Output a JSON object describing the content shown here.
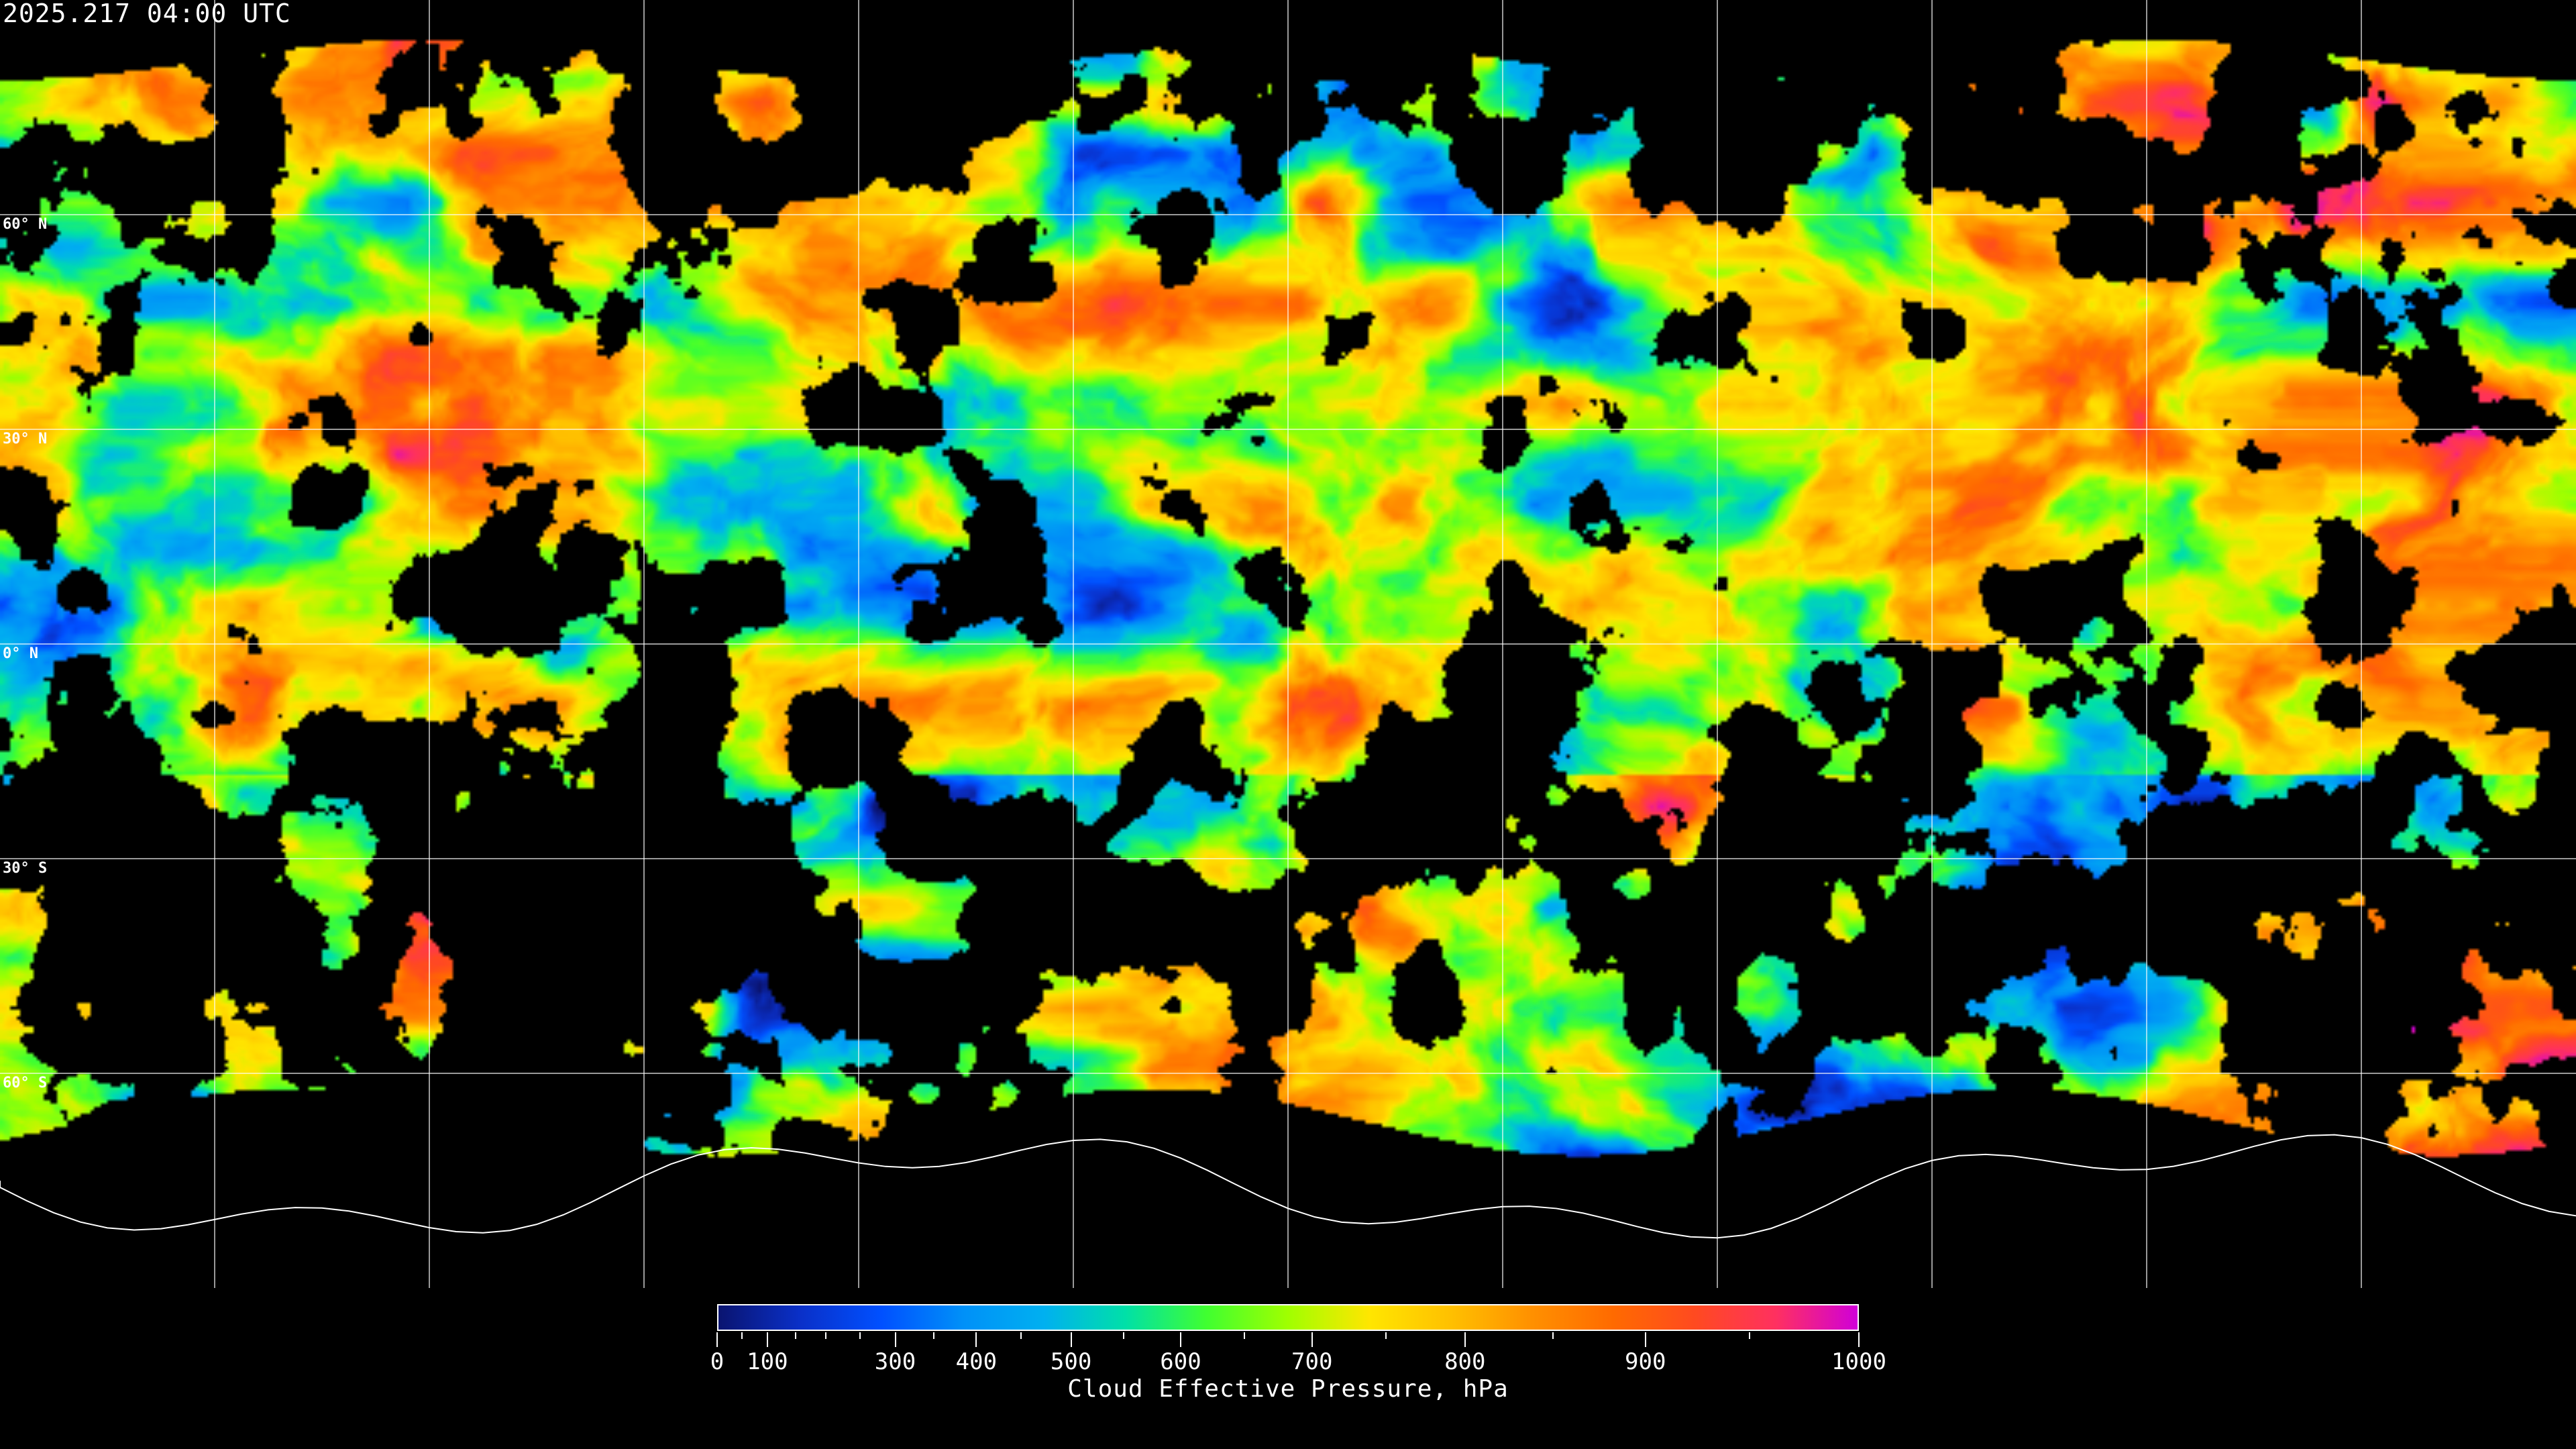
{
  "title": "2025.217 04:00 UTC",
  "map": {
    "projection": "equirectangular",
    "background_color": "#000000",
    "gridline_color": "#ffffff",
    "coastline_color": "#ffffff",
    "lat_labels": [
      "60° N",
      "30° N",
      "0° N",
      "30° S",
      "60° S"
    ]
  },
  "colorbar": {
    "title": "Cloud Effective Pressure, hPa",
    "tick_labels": [
      "0",
      "100",
      "300",
      "400",
      "500",
      "600",
      "700",
      "800",
      "900",
      "1000"
    ],
    "minor_ticks": [
      50,
      150,
      200,
      250,
      350,
      450,
      550,
      650,
      750,
      850,
      950
    ],
    "range": [
      0,
      1000
    ],
    "colors": [
      "#0a1470",
      "#0a30c8",
      "#0050ff",
      "#0090f8",
      "#00b0f0",
      "#00e0a8",
      "#40ff30",
      "#a0ff00",
      "#ffe600",
      "#ffc000",
      "#ff9000",
      "#ff6a00",
      "#ff4a20",
      "#ff3060",
      "#d000d8"
    ]
  }
}
